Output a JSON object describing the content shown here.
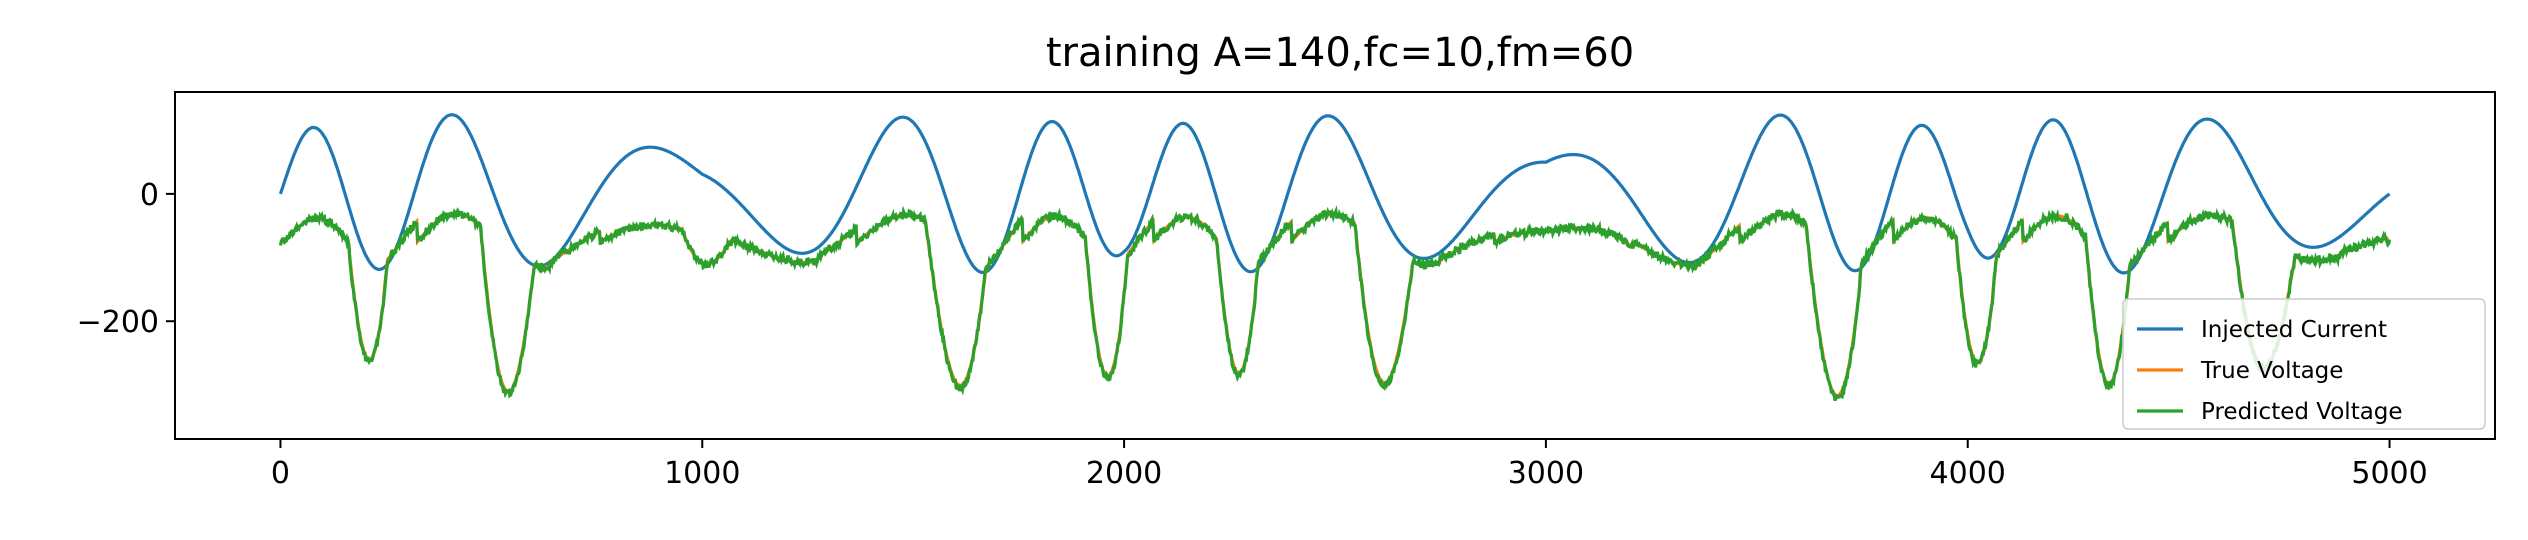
{
  "chart_data": {
    "type": "line",
    "title": "training A=140,fc=10,fm=60",
    "xlabel": "",
    "ylabel": "",
    "xlim": [
      -250,
      5250
    ],
    "ylim": [
      -385,
      160
    ],
    "x_ticks": [
      0,
      1000,
      2000,
      3000,
      4000,
      5000
    ],
    "x_tick_labels": [
      "0",
      "1000",
      "2000",
      "3000",
      "4000",
      "5000"
    ],
    "y_ticks": [
      0,
      -200
    ],
    "y_tick_labels": [
      "0",
      "−200"
    ],
    "grid": false,
    "legend_placement": "lower-right",
    "x_range": [
      0,
      5000
    ],
    "series": [
      {
        "name": "Injected Current",
        "color": "#1f77b4",
        "model": {
          "kind": "fm-sine",
          "amplitude": 140,
          "carrier_cycles": 12,
          "mod_index": 1.8,
          "mod_cycles": 2.5
        }
      },
      {
        "name": "True Voltage",
        "color": "#ff7f0e",
        "model": {
          "kind": "response",
          "baseline": -75,
          "peak": 50,
          "trough": -350,
          "dip_delay": 130,
          "noise": 0
        }
      },
      {
        "name": "Predicted Voltage",
        "color": "#2ca02c",
        "model": {
          "kind": "response",
          "baseline": -75,
          "peak": 45,
          "trough": -355,
          "dip_delay": 130,
          "noise": 6
        }
      }
    ]
  }
}
